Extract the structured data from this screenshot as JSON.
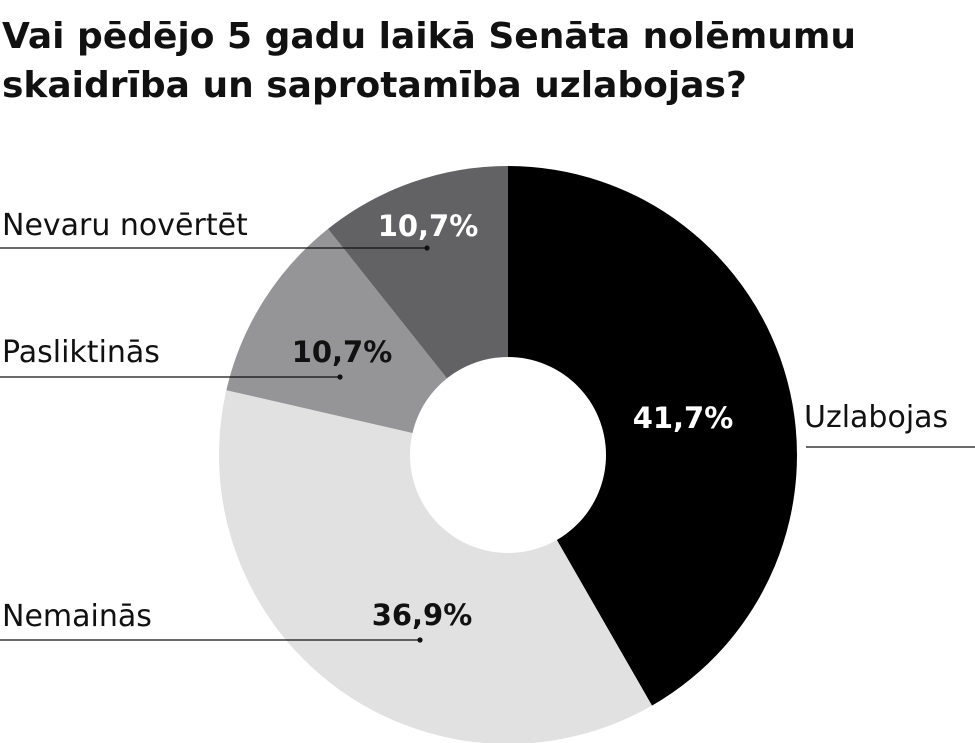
{
  "chart_data": {
    "type": "pie",
    "donut": true,
    "title": "Vai pēdējo 5 gadu laikā Senāta nolēmumu skaidrība un saprotamība uzlabojas?",
    "title_lines": [
      "Vai pēdējo 5 gadu laikā Senāta nolēmumu",
      "skaidrība un saprotamība uzlabojas?"
    ],
    "slices": [
      {
        "label": "Uzlabojas",
        "value": 41.7,
        "value_text": "41,7%",
        "color": "#000000",
        "value_text_color": "#ffffff"
      },
      {
        "label": "Nemainās",
        "value": 36.9,
        "value_text": "36,9%",
        "color": "#e1e1e2",
        "value_text_color": "#111111"
      },
      {
        "label": "Pasliktinās",
        "value": 10.7,
        "value_text": "10,7%",
        "color": "#959597",
        "value_text_color": "#111111"
      },
      {
        "label": "Nevaru novērtēt",
        "value": 10.7,
        "value_text": "10,7%",
        "color": "#626264",
        "value_text_color": "#ffffff"
      }
    ],
    "start": "top",
    "direction": "clockwise",
    "legend": "none"
  }
}
